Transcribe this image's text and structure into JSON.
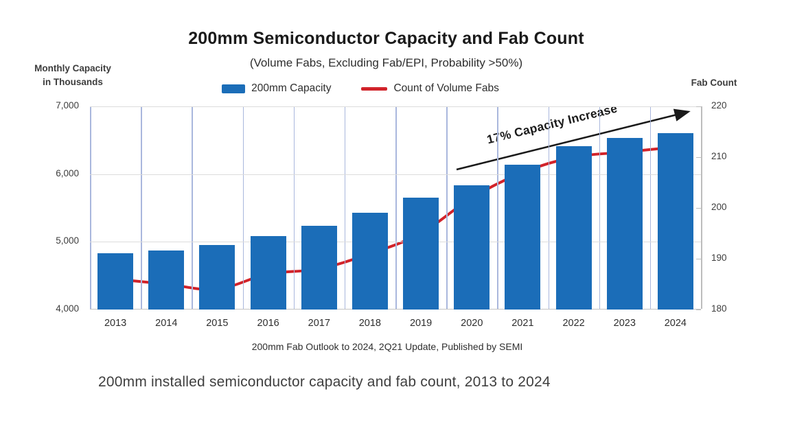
{
  "figure_caption": "200mm installed semiconductor capacity and fab count, 2013 to 2024",
  "chart": {
    "title": "200mm Semiconductor Capacity and Fab Count",
    "subtitle": "(Volume Fabs, Excluding Fab/EPI, Probability >50%)",
    "left_axis_title": "Monthly Capacity\nin Thousands",
    "right_axis_title": "Fab Count",
    "legend": {
      "capacity_label": "200mm Capacity",
      "fabs_label": "Count of Volume Fabs"
    },
    "annotation_text": "17% Capacity Increase",
    "source_note": "200mm Fab Outlook to 2024, 2Q21 Update, Published by SEMI",
    "colors": {
      "bar": "#1b6db8",
      "line": "#d1232a",
      "vertical_grid": "#a9b7dd",
      "horizontal_grid": "#dcdcdc",
      "right_axis": "#bdbdbd",
      "arrow": "#1a1a1a"
    }
  },
  "chart_data": {
    "type": "bar",
    "title": "200mm Semiconductor Capacity and Fab Count",
    "subtitle": "(Volume Fabs, Excluding Fab/EPI, Probability >50%)",
    "categories": [
      "2013",
      "2014",
      "2015",
      "2016",
      "2017",
      "2018",
      "2019",
      "2020",
      "2021",
      "2022",
      "2023",
      "2024"
    ],
    "series": [
      {
        "name": "200mm Capacity",
        "type": "bar",
        "axis": "left",
        "values": [
          4830,
          4870,
          4950,
          5090,
          5240,
          5430,
          5650,
          5830,
          6140,
          6410,
          6530,
          6610
        ]
      },
      {
        "name": "Count of Volume Fabs",
        "type": "line",
        "axis": "right",
        "values": [
          186,
          185,
          184,
          187,
          188,
          191,
          195,
          202,
          207,
          210,
          211,
          212
        ]
      }
    ],
    "left_axis": {
      "title": "Monthly Capacity in Thousands",
      "range": [
        4000,
        7000
      ],
      "ticks": [
        {
          "value": 7000,
          "label": "7,000"
        },
        {
          "value": 6000,
          "label": "6,000"
        },
        {
          "value": 5000,
          "label": "5,000"
        },
        {
          "value": 4000,
          "label": "4,000"
        }
      ]
    },
    "right_axis": {
      "title": "Fab Count",
      "range": [
        180,
        220
      ],
      "ticks": [
        {
          "value": 220,
          "label": "220"
        },
        {
          "value": 210,
          "label": "210"
        },
        {
          "value": 200,
          "label": "200"
        },
        {
          "value": 190,
          "label": "190"
        },
        {
          "value": 180,
          "label": "180"
        }
      ]
    },
    "annotation": "17% Capacity Increase",
    "grid": {
      "vertical": true,
      "horizontal": true
    },
    "legend_position": "top"
  }
}
